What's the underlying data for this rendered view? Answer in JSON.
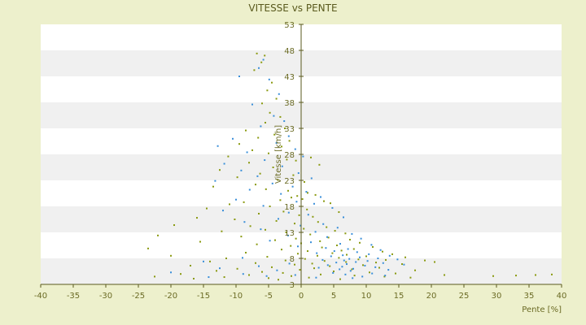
{
  "chart_data": {
    "type": "scatter",
    "title": "VITESSE vs PENTE",
    "xlabel": "Pente [%]",
    "ylabel": "Vitesse [km/h]",
    "xlim": [
      -40,
      40
    ],
    "ylim": [
      3,
      53
    ],
    "xticks": [
      "-40",
      "-35",
      "-30",
      "-25",
      "-20",
      "-15",
      "-10",
      "-5",
      "0",
      "5",
      "10",
      "15",
      "20",
      "25",
      "30",
      "35",
      "40"
    ],
    "yticks": [
      "3",
      "8",
      "13",
      "18",
      "23",
      "28",
      "33",
      "38",
      "43",
      "48",
      "53"
    ],
    "grid": "horizontal alternating bands",
    "colors": {
      "background": "#edf0cc",
      "plot_white": "#ffffff",
      "plot_band": "#f0f0f0",
      "series_a": "#8a9a10",
      "series_b": "#3a8fd9",
      "axis": "#5a5a1e",
      "text": "#6b6b25"
    },
    "series": [
      {
        "color": "#8a9a10",
        "points": [
          [
            -6.8,
            47.4
          ],
          [
            -5.6,
            47.0
          ],
          [
            -6.1,
            45.7
          ],
          [
            -7.2,
            44.2
          ],
          [
            -4.5,
            41.8
          ],
          [
            -5.2,
            40.3
          ],
          [
            -3.8,
            38.7
          ],
          [
            -6.0,
            37.8
          ],
          [
            -4.8,
            36.0
          ],
          [
            -3.2,
            35.2
          ],
          [
            -5.5,
            34.1
          ],
          [
            -2.5,
            33.0
          ],
          [
            -8.5,
            32.6
          ],
          [
            -4.1,
            31.8
          ],
          [
            -6.6,
            31.2
          ],
          [
            -1.8,
            30.6
          ],
          [
            -9.5,
            30.0
          ],
          [
            -3.0,
            29.5
          ],
          [
            -7.5,
            28.8
          ],
          [
            -5.0,
            28.2
          ],
          [
            -11.2,
            27.6
          ],
          [
            -2.2,
            27.0
          ],
          [
            -8.0,
            26.4
          ],
          [
            -0.8,
            26.8
          ],
          [
            1.5,
            27.4
          ],
          [
            2.8,
            26.0
          ],
          [
            -4.3,
            25.5
          ],
          [
            -12.5,
            25.0
          ],
          [
            -6.3,
            24.3
          ],
          [
            -1.2,
            24.0
          ],
          [
            -9.8,
            23.6
          ],
          [
            -3.6,
            23.1
          ],
          [
            0.5,
            22.7
          ],
          [
            -7.0,
            22.2
          ],
          [
            -13.5,
            21.8
          ],
          [
            -5.4,
            21.3
          ],
          [
            -2.0,
            21.0
          ],
          [
            1.0,
            20.6
          ],
          [
            2.2,
            20.2
          ],
          [
            -0.6,
            20.0
          ],
          [
            -1.5,
            19.7
          ],
          [
            0.2,
            19.4
          ],
          [
            -3.2,
            19.2
          ],
          [
            3.5,
            19.0
          ],
          [
            -8.8,
            18.8
          ],
          [
            -11.0,
            18.4
          ],
          [
            4.5,
            18.6
          ],
          [
            -4.8,
            18.0
          ],
          [
            -14.5,
            17.6
          ],
          [
            0.9,
            17.4
          ],
          [
            -2.7,
            17.0
          ],
          [
            -6.5,
            16.6
          ],
          [
            5.8,
            16.9
          ],
          [
            -0.3,
            16.3
          ],
          [
            1.8,
            16.0
          ],
          [
            -16.0,
            15.8
          ],
          [
            -10.2,
            15.5
          ],
          [
            -3.8,
            15.2
          ],
          [
            2.6,
            15.0
          ],
          [
            -1.0,
            14.7
          ],
          [
            -19.5,
            14.4
          ],
          [
            -7.8,
            14.2
          ],
          [
            3.9,
            14.0
          ],
          [
            0.4,
            13.7
          ],
          [
            -5.5,
            13.5
          ],
          [
            -12.2,
            13.2
          ],
          [
            5.2,
            13.3
          ],
          [
            -2.3,
            13.0
          ],
          [
            6.8,
            12.8
          ],
          [
            1.4,
            12.6
          ],
          [
            -22.0,
            12.4
          ],
          [
            -9.2,
            12.2
          ],
          [
            4.2,
            12.0
          ],
          [
            -0.8,
            11.8
          ],
          [
            7.5,
            11.6
          ],
          [
            -4.0,
            11.5
          ],
          [
            2.9,
            11.3
          ],
          [
            -15.5,
            11.2
          ],
          [
            9.0,
            11.0
          ],
          [
            0.0,
            10.9
          ],
          [
            -6.8,
            10.7
          ],
          [
            5.5,
            10.5
          ],
          [
            -1.6,
            10.4
          ],
          [
            11.0,
            10.2
          ],
          [
            3.2,
            10.1
          ],
          [
            -23.5,
            9.9
          ],
          [
            8.1,
            9.8
          ],
          [
            -3.0,
            9.7
          ],
          [
            6.2,
            9.5
          ],
          [
            1.0,
            9.4
          ],
          [
            12.5,
            9.3
          ],
          [
            -8.5,
            9.1
          ],
          [
            4.8,
            9.0
          ],
          [
            -0.5,
            8.9
          ],
          [
            14.0,
            8.8
          ],
          [
            7.0,
            8.7
          ],
          [
            -20.0,
            8.5
          ],
          [
            2.5,
            8.5
          ],
          [
            10.0,
            8.4
          ],
          [
            -5.2,
            8.3
          ],
          [
            16.0,
            8.2
          ],
          [
            5.8,
            8.1
          ],
          [
            -11.5,
            8.0
          ],
          [
            0.6,
            7.9
          ],
          [
            8.8,
            7.8
          ],
          [
            13.0,
            7.7
          ],
          [
            -2.4,
            7.6
          ],
          [
            19.0,
            7.6
          ],
          [
            3.6,
            7.5
          ],
          [
            -14.0,
            7.4
          ],
          [
            6.9,
            7.3
          ],
          [
            11.5,
            7.2
          ],
          [
            -7.0,
            7.1
          ],
          [
            1.7,
            7.0
          ],
          [
            15.5,
            6.9
          ],
          [
            -1.0,
            6.8
          ],
          [
            9.5,
            6.7
          ],
          [
            -17.0,
            6.6
          ],
          [
            4.4,
            6.5
          ],
          [
            20.5,
            7.3
          ],
          [
            -4.5,
            6.3
          ],
          [
            12.0,
            6.2
          ],
          [
            2.0,
            6.1
          ],
          [
            -9.8,
            6.0
          ],
          [
            7.8,
            5.9
          ],
          [
            -0.2,
            5.8
          ],
          [
            17.5,
            5.7
          ],
          [
            -13.0,
            5.6
          ],
          [
            5.0,
            5.5
          ],
          [
            -6.0,
            5.4
          ],
          [
            10.5,
            5.3
          ],
          [
            -2.8,
            5.2
          ],
          [
            14.5,
            5.1
          ],
          [
            -18.5,
            5.0
          ],
          [
            3.0,
            4.9
          ],
          [
            -8.0,
            4.8
          ],
          [
            8.2,
            4.7
          ],
          [
            22.0,
            4.8
          ],
          [
            -1.5,
            4.6
          ],
          [
            -22.5,
            4.5
          ],
          [
            12.8,
            4.5
          ],
          [
            -11.8,
            4.4
          ],
          [
            1.2,
            4.3
          ],
          [
            16.8,
            4.3
          ],
          [
            -5.0,
            4.2
          ],
          [
            29.5,
            4.6
          ],
          [
            33.0,
            4.7
          ],
          [
            36.0,
            4.8
          ],
          [
            38.5,
            4.9
          ],
          [
            -16.5,
            4.1
          ],
          [
            6.0,
            4.0
          ],
          [
            -3.5,
            3.9
          ]
        ]
      },
      {
        "color": "#3a8fd9",
        "points": [
          [
            -5.8,
            46.2
          ],
          [
            -6.5,
            44.6
          ],
          [
            -9.5,
            43.0
          ],
          [
            -4.9,
            42.4
          ],
          [
            -3.4,
            39.6
          ],
          [
            -7.5,
            37.6
          ],
          [
            -4.2,
            35.4
          ],
          [
            -2.6,
            34.4
          ],
          [
            -6.2,
            33.4
          ],
          [
            -1.9,
            31.5
          ],
          [
            -10.5,
            31.0
          ],
          [
            -3.8,
            30.2
          ],
          [
            -12.8,
            29.6
          ],
          [
            -0.9,
            29.0
          ],
          [
            -8.3,
            28.4
          ],
          [
            0.3,
            27.6
          ],
          [
            -5.6,
            26.9
          ],
          [
            -11.8,
            26.2
          ],
          [
            -2.9,
            25.7
          ],
          [
            -9.2,
            24.9
          ],
          [
            -0.4,
            24.4
          ],
          [
            -6.7,
            23.8
          ],
          [
            1.6,
            23.4
          ],
          [
            -13.2,
            22.9
          ],
          [
            -4.4,
            22.4
          ],
          [
            -1.3,
            21.8
          ],
          [
            -7.9,
            21.2
          ],
          [
            0.8,
            20.8
          ],
          [
            -3.1,
            20.4
          ],
          [
            3.0,
            19.8
          ],
          [
            -10.0,
            19.3
          ],
          [
            -0.7,
            18.9
          ],
          [
            2.0,
            18.5
          ],
          [
            -5.8,
            18.1
          ],
          [
            4.8,
            17.7
          ],
          [
            -12.0,
            17.2
          ],
          [
            -1.9,
            16.8
          ],
          [
            1.1,
            16.4
          ],
          [
            6.5,
            15.9
          ],
          [
            -3.5,
            15.6
          ],
          [
            -8.7,
            15.0
          ],
          [
            3.4,
            14.6
          ],
          [
            -0.1,
            14.3
          ],
          [
            5.6,
            13.9
          ],
          [
            -6.2,
            13.6
          ],
          [
            2.2,
            13.1
          ],
          [
            7.8,
            12.7
          ],
          [
            -2.0,
            12.4
          ],
          [
            4.0,
            12.1
          ],
          [
            9.2,
            11.8
          ],
          [
            -4.8,
            11.4
          ],
          [
            1.5,
            11.1
          ],
          [
            6.0,
            10.8
          ],
          [
            10.8,
            10.6
          ],
          [
            -0.5,
            10.3
          ],
          [
            3.8,
            10.0
          ],
          [
            7.2,
            9.8
          ],
          [
            12.2,
            9.6
          ],
          [
            5.1,
            9.4
          ],
          [
            8.6,
            9.2
          ],
          [
            2.4,
            9.0
          ],
          [
            10.4,
            8.8
          ],
          [
            6.4,
            8.6
          ],
          [
            13.6,
            8.5
          ],
          [
            4.6,
            8.4
          ],
          [
            9.0,
            8.2
          ],
          [
            -9.0,
            8.1
          ],
          [
            11.8,
            8.0
          ],
          [
            7.4,
            7.9
          ],
          [
            14.8,
            7.8
          ],
          [
            3.3,
            7.7
          ],
          [
            6.6,
            7.6
          ],
          [
            10.2,
            7.5
          ],
          [
            -15.0,
            7.4
          ],
          [
            8.4,
            7.3
          ],
          [
            5.4,
            7.2
          ],
          [
            12.6,
            7.1
          ],
          [
            -1.8,
            7.0
          ],
          [
            7.0,
            6.9
          ],
          [
            15.8,
            6.8
          ],
          [
            4.1,
            6.7
          ],
          [
            9.8,
            6.6
          ],
          [
            -6.5,
            6.5
          ],
          [
            6.3,
            6.4
          ],
          [
            11.4,
            6.3
          ],
          [
            2.7,
            6.2
          ],
          [
            -12.5,
            6.1
          ],
          [
            8.0,
            6.0
          ],
          [
            5.9,
            5.9
          ],
          [
            13.4,
            5.8
          ],
          [
            -3.7,
            5.7
          ],
          [
            7.6,
            5.6
          ],
          [
            -20.0,
            5.3
          ],
          [
            4.9,
            5.2
          ],
          [
            10.9,
            5.1
          ],
          [
            -8.9,
            5.0
          ],
          [
            6.8,
            4.9
          ],
          [
            -0.9,
            4.8
          ],
          [
            12.9,
            4.7
          ],
          [
            -5.3,
            4.6
          ],
          [
            9.4,
            4.5
          ],
          [
            -14.2,
            4.4
          ],
          [
            2.3,
            4.3
          ],
          [
            7.9,
            4.2
          ]
        ]
      }
    ]
  }
}
